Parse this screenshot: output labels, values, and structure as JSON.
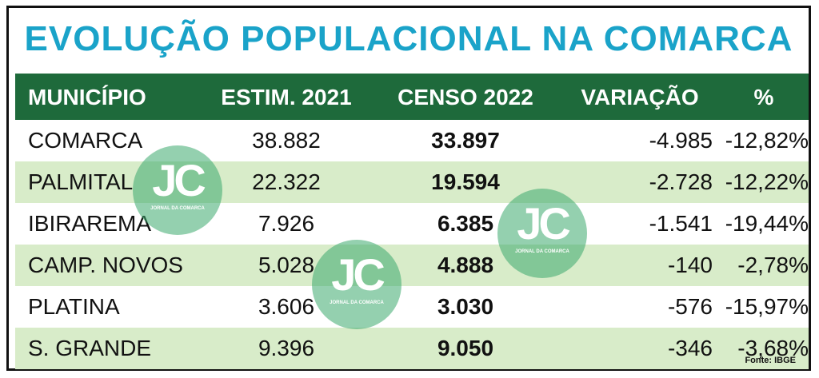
{
  "title": "EVOLUÇÃO POPULACIONAL NA COMARCA",
  "headers": [
    "MUNICÍPIO",
    "ESTIM. 2021",
    "CENSO 2022",
    "VARIAÇÃO",
    "%"
  ],
  "rows": [
    [
      "COMARCA",
      "38.882",
      "33.897",
      "-4.985",
      "-12,82%"
    ],
    [
      "PALMITAL",
      "22.322",
      "19.594",
      "-2.728",
      "-12,22%"
    ],
    [
      "IBIRAREMA",
      "7.926",
      "6.385",
      "-1.541",
      "-19,44%"
    ],
    [
      "CAMP. NOVOS",
      "5.028",
      "4.888",
      "-140",
      "-2,78%"
    ],
    [
      "PLATINA",
      "3.606",
      "3.030",
      "-576",
      "-15,97%"
    ],
    [
      "S. GRANDE",
      "9.396",
      "9.050",
      "-346",
      "-3,68%"
    ]
  ],
  "source": "Fonte: IBGE",
  "watermark": {
    "logo": "JC",
    "text": "JORNAL DA COMARCA"
  },
  "colors": {
    "title": "#1aa3c9",
    "header_bg": "#1e6a3b",
    "row_alt": "#d8ecc9",
    "watermark": "#3caa6e"
  }
}
